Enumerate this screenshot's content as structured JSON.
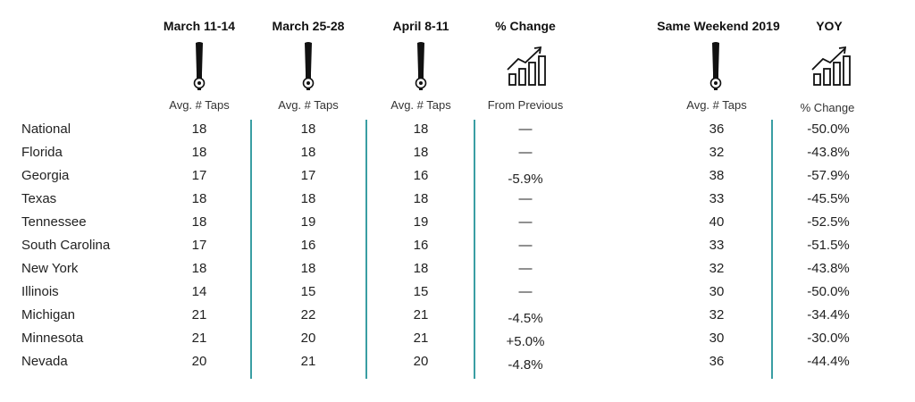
{
  "columns": [
    {
      "title": "March 11-14",
      "sub": "Avg. # Taps",
      "icon": "beer-tap-icon"
    },
    {
      "title": "March 25-28",
      "sub": "Avg. # Taps",
      "icon": "beer-tap-icon"
    },
    {
      "title": "April 8-11",
      "sub": "Avg. # Taps",
      "icon": "beer-tap-icon"
    },
    {
      "title": "% Change",
      "sub": "From Previous",
      "icon": "trend-chart-icon"
    },
    {
      "title": "Same Weekend 2019",
      "sub": "Avg. # Taps",
      "icon": "beer-tap-icon"
    },
    {
      "title": "YOY",
      "sub": "% Change",
      "icon": "trend-chart-icon"
    }
  ],
  "colors": {
    "divider": "#3a9ea3",
    "text": "#222222"
  },
  "chart_data": {
    "type": "table",
    "columns": [
      "March 11-14",
      "March 25-28",
      "April 8-11",
      "% Change",
      "Same Weekend 2019",
      "YOY"
    ],
    "rows": [
      {
        "state": "National",
        "values": [
          "18",
          "18",
          "18",
          "—",
          "36",
          "-50.0%"
        ]
      },
      {
        "state": "Florida",
        "values": [
          "18",
          "18",
          "18",
          "—",
          "32",
          "-43.8%"
        ]
      },
      {
        "state": "Georgia",
        "values": [
          "17",
          "17",
          "16",
          "-5.9%",
          "38",
          "-57.9%"
        ]
      },
      {
        "state": "Texas",
        "values": [
          "18",
          "18",
          "18",
          "—",
          "33",
          "-45.5%"
        ]
      },
      {
        "state": "Tennessee",
        "values": [
          "18",
          "19",
          "19",
          "—",
          "40",
          "-52.5%"
        ]
      },
      {
        "state": "South Carolina",
        "values": [
          "17",
          "16",
          "16",
          "—",
          "33",
          "-51.5%"
        ]
      },
      {
        "state": "New York",
        "values": [
          "18",
          "18",
          "18",
          "—",
          "32",
          "-43.8%"
        ]
      },
      {
        "state": "Illinois",
        "values": [
          "14",
          "15",
          "15",
          "—",
          "30",
          "-50.0%"
        ]
      },
      {
        "state": "Michigan",
        "values": [
          "21",
          "22",
          "21",
          "-4.5%",
          "32",
          "-34.4%"
        ]
      },
      {
        "state": "Minnesota",
        "values": [
          "21",
          "20",
          "21",
          "+5.0%",
          "30",
          "-30.0%"
        ]
      },
      {
        "state": "Nevada",
        "values": [
          "20",
          "21",
          "20",
          "-4.8%",
          "36",
          "-44.4%"
        ]
      }
    ]
  }
}
